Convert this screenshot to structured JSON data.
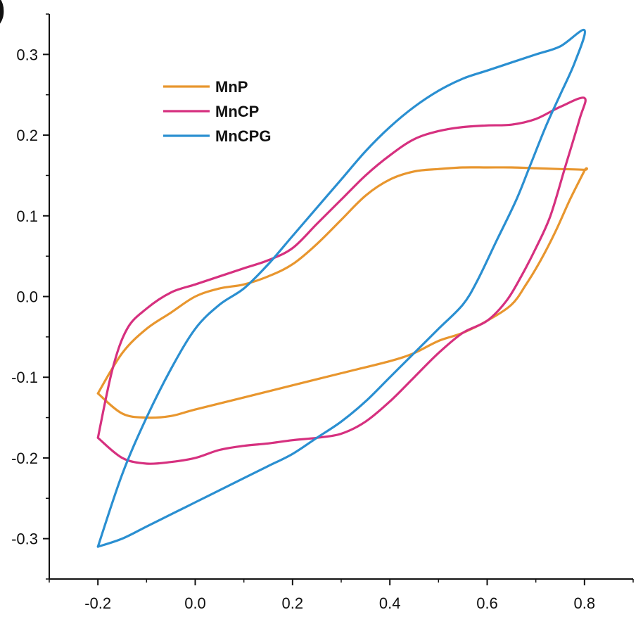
{
  "chart_data": {
    "type": "line",
    "panel_label": ")",
    "xlim": [
      -0.3,
      0.9
    ],
    "ylim": [
      -0.35,
      0.35
    ],
    "x_ticks": [
      -0.2,
      0.0,
      0.2,
      0.4,
      0.6,
      0.8
    ],
    "x_tick_labels": [
      "-0.2",
      "0.0",
      "0.2",
      "0.4",
      "0.6",
      "0.8"
    ],
    "y_ticks": [
      -0.3,
      -0.2,
      -0.1,
      0.0,
      0.1,
      0.2,
      0.3
    ],
    "y_tick_labels": [
      "-0.3",
      "-0.2",
      "-0.1",
      "0.0",
      "0.1",
      "0.2",
      "0.3"
    ],
    "legend": {
      "position": "top-left"
    },
    "series": [
      {
        "name": "MnP",
        "color": "#E8962E",
        "x": [
          -0.2,
          -0.15,
          -0.1,
          -0.05,
          0.0,
          0.05,
          0.1,
          0.15,
          0.2,
          0.25,
          0.3,
          0.35,
          0.4,
          0.45,
          0.5,
          0.55,
          0.6,
          0.65,
          0.7,
          0.75,
          0.8,
          0.8,
          0.77,
          0.74,
          0.71,
          0.68,
          0.65,
          0.6,
          0.55,
          0.5,
          0.45,
          0.4,
          0.3,
          0.2,
          0.1,
          0.0,
          -0.05,
          -0.1,
          -0.15,
          -0.2
        ],
        "y": [
          -0.12,
          -0.07,
          -0.04,
          -0.02,
          0.0,
          0.01,
          0.015,
          0.025,
          0.04,
          0.065,
          0.095,
          0.125,
          0.145,
          0.155,
          0.158,
          0.16,
          0.16,
          0.16,
          0.159,
          0.158,
          0.157,
          0.156,
          0.12,
          0.08,
          0.045,
          0.015,
          -0.01,
          -0.03,
          -0.045,
          -0.055,
          -0.07,
          -0.08,
          -0.095,
          -0.11,
          -0.125,
          -0.14,
          -0.148,
          -0.15,
          -0.145,
          -0.12
        ]
      },
      {
        "name": "MnCP",
        "color": "#D6307F",
        "x": [
          -0.2,
          -0.17,
          -0.14,
          -0.1,
          -0.05,
          0.0,
          0.05,
          0.1,
          0.15,
          0.2,
          0.25,
          0.3,
          0.35,
          0.4,
          0.45,
          0.5,
          0.55,
          0.6,
          0.65,
          0.7,
          0.75,
          0.8,
          0.79,
          0.76,
          0.73,
          0.7,
          0.67,
          0.64,
          0.6,
          0.55,
          0.5,
          0.45,
          0.4,
          0.35,
          0.3,
          0.25,
          0.2,
          0.15,
          0.1,
          0.05,
          0.0,
          -0.05,
          -0.1,
          -0.15,
          -0.2
        ],
        "y": [
          -0.175,
          -0.09,
          -0.04,
          -0.015,
          0.005,
          0.015,
          0.025,
          0.035,
          0.045,
          0.06,
          0.09,
          0.12,
          0.15,
          0.175,
          0.195,
          0.205,
          0.21,
          0.212,
          0.213,
          0.22,
          0.235,
          0.246,
          0.22,
          0.16,
          0.1,
          0.06,
          0.025,
          -0.005,
          -0.03,
          -0.045,
          -0.07,
          -0.1,
          -0.13,
          -0.155,
          -0.17,
          -0.175,
          -0.178,
          -0.182,
          -0.185,
          -0.19,
          -0.2,
          -0.205,
          -0.207,
          -0.2,
          -0.175
        ]
      },
      {
        "name": "MnCPG",
        "color": "#2A8FD1",
        "x": [
          -0.2,
          -0.15,
          -0.1,
          -0.05,
          0.0,
          0.05,
          0.1,
          0.15,
          0.2,
          0.25,
          0.3,
          0.35,
          0.4,
          0.45,
          0.5,
          0.55,
          0.6,
          0.65,
          0.7,
          0.75,
          0.8,
          0.78,
          0.75,
          0.72,
          0.69,
          0.66,
          0.62,
          0.58,
          0.55,
          0.5,
          0.45,
          0.4,
          0.35,
          0.3,
          0.25,
          0.2,
          0.15,
          0.1,
          0.05,
          0.0,
          -0.05,
          -0.1,
          -0.15,
          -0.2
        ],
        "y": [
          -0.31,
          -0.22,
          -0.15,
          -0.09,
          -0.04,
          -0.01,
          0.01,
          0.04,
          0.075,
          0.11,
          0.145,
          0.18,
          0.21,
          0.235,
          0.255,
          0.27,
          0.28,
          0.29,
          0.3,
          0.31,
          0.33,
          0.29,
          0.25,
          0.21,
          0.165,
          0.12,
          0.07,
          0.02,
          -0.01,
          -0.04,
          -0.07,
          -0.1,
          -0.13,
          -0.155,
          -0.175,
          -0.195,
          -0.21,
          -0.225,
          -0.24,
          -0.255,
          -0.27,
          -0.285,
          -0.3,
          -0.31
        ]
      }
    ]
  }
}
